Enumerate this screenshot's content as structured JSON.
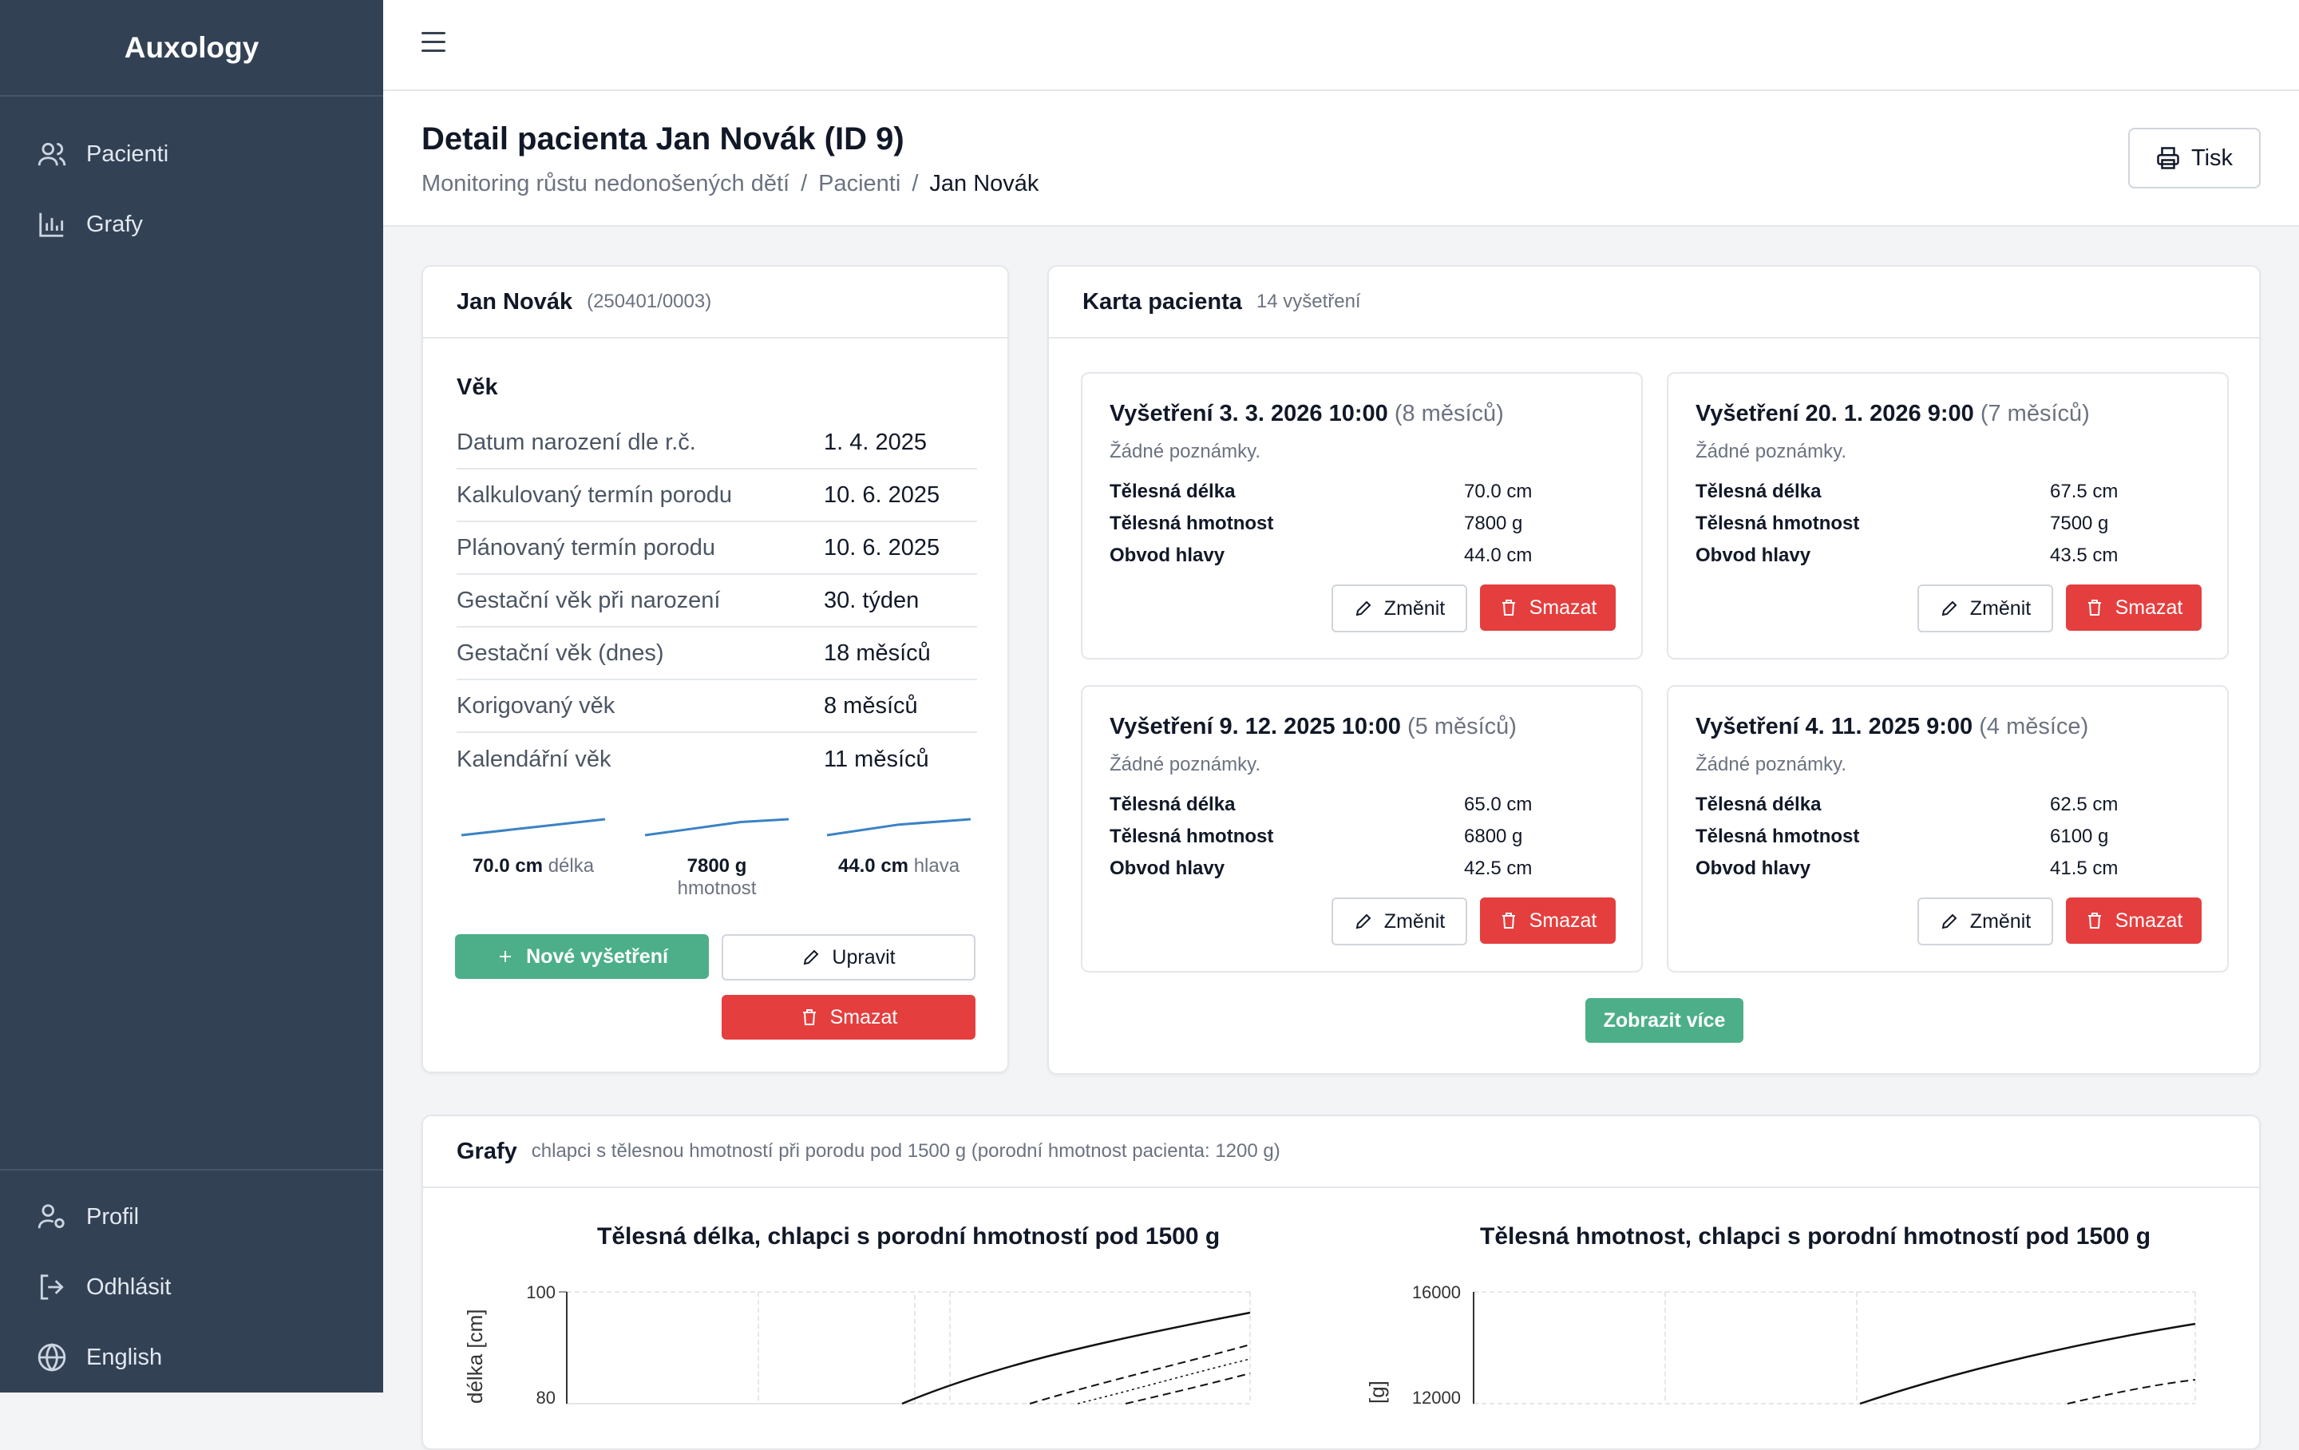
{
  "app": {
    "brand": "Auxology"
  },
  "sidebar": {
    "items": [
      {
        "label": "Pacienti",
        "icon": "users-icon"
      },
      {
        "label": "Grafy",
        "icon": "bar-chart-icon"
      }
    ],
    "bottom": [
      {
        "label": "Profil",
        "icon": "user-settings-icon"
      },
      {
        "label": "Odhlásit",
        "icon": "logout-icon"
      },
      {
        "label": "English",
        "icon": "globe-icon"
      }
    ]
  },
  "header": {
    "title": "Detail pacienta Jan Novák (ID 9)",
    "breadcrumb": [
      "Monitoring růstu nedonošených dětí",
      "/",
      "Pacienti",
      "/",
      "Jan Novák"
    ],
    "print_label": "Tisk"
  },
  "patient": {
    "name": "Jan Novák",
    "birth_number": "(250401/0003)",
    "section_title": "Věk",
    "rows": [
      {
        "key": "Datum narození dle r.č.",
        "value": "1. 4. 2025"
      },
      {
        "key": "Kalkulovaný termín porodu",
        "value": "10. 6. 2025"
      },
      {
        "key": "Plánovaný termín porodu",
        "value": "10. 6. 2025"
      },
      {
        "key": "Gestační věk při narození",
        "value": "30. týden"
      },
      {
        "key": "Gestační věk (dnes)",
        "value": "18 měsíců"
      },
      {
        "key": "Korigovaný věk",
        "value": "8 měsíců"
      },
      {
        "key": "Kalendářní věk",
        "value": "11 měsíců"
      }
    ],
    "sparks": [
      {
        "value": "70.0 cm",
        "unit": "délka",
        "points": [
          65.0,
          67.5,
          70.0
        ]
      },
      {
        "value": "7800 g",
        "unit": "hmotnost",
        "points": [
          6100,
          6800,
          7500,
          7800
        ]
      },
      {
        "value": "44.0 cm",
        "unit": "hlava",
        "points": [
          42.5,
          43.5,
          44.0
        ]
      }
    ],
    "new_exam_label": "Nové vyšetření",
    "edit_label": "Upravit",
    "delete_label": "Smazat"
  },
  "exams": {
    "title": "Karta pacienta",
    "count": "14 vyšetření",
    "items": [
      {
        "title": "Vyšetření 3. 3. 2026 10:00",
        "age": "(8 měsíců)",
        "note": "Žádné poznámky.",
        "length": "70.0 cm",
        "weight": "7800 g",
        "head": "44.0 cm"
      },
      {
        "title": "Vyšetření 20. 1. 2026 9:00",
        "age": "(7 měsíců)",
        "note": "Žádné poznámky.",
        "length": "67.5 cm",
        "weight": "7500 g",
        "head": "43.5 cm"
      },
      {
        "title": "Vyšetření 9. 12. 2025 10:00",
        "age": "(5 měsíců)",
        "note": "Žádné poznámky.",
        "length": "65.0 cm",
        "weight": "6800 g",
        "head": "42.5 cm"
      },
      {
        "title": "Vyšetření 4. 11. 2025 9:00",
        "age": "(4 měsíce)",
        "note": "Žádné poznámky.",
        "length": "62.5 cm",
        "weight": "6100 g",
        "head": "41.5 cm"
      }
    ],
    "labels": {
      "length": "Tělesná délka",
      "weight": "Tělesná hmotnost",
      "head": "Obvod hlavy",
      "edit": "Změnit",
      "delete": "Smazat"
    },
    "more_label": "Zobrazit více"
  },
  "charts": {
    "title": "Grafy",
    "subtitle": "chlapci s tělesnou hmotností při porodu pod 1500 g (porodní hmotnost pacienta: 1200 g)"
  },
  "chart_data": [
    {
      "type": "line",
      "title": "Tělesná délka, chlapci s porodní hmotností pod 1500 g",
      "ylabel": "délka [cm]",
      "yticks": [
        80,
        100
      ],
      "grid": true
    },
    {
      "type": "line",
      "title": "Tělesná hmotnost, chlapci s porodní hmotností pod 1500 g",
      "ylabel": "[g]",
      "yticks": [
        12000,
        16000
      ],
      "grid": true
    }
  ]
}
